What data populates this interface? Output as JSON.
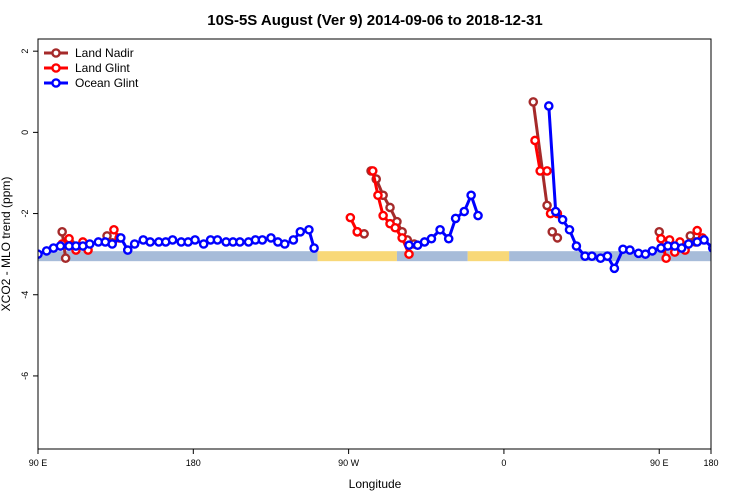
{
  "chart_data": {
    "type": "line",
    "title": "10S-5S August (Ver 9)   2014-09-06 to 2018-12-31",
    "xlabel": "Longitude",
    "ylabel": "XCO2 - MLO trend (ppm)",
    "xlim": [
      90,
      480
    ],
    "ylim": [
      -7.8,
      2.3
    ],
    "x_ticks": [
      {
        "value": 90,
        "label": "90 E"
      },
      {
        "value": 180,
        "label": "180"
      },
      {
        "value": 270,
        "label": "90 W"
      },
      {
        "value": 360,
        "label": "0"
      },
      {
        "value": 450,
        "label": "90 E"
      },
      {
        "value": 480,
        "label": "180"
      }
    ],
    "y_ticks": [
      {
        "value": 2,
        "label": "2"
      },
      {
        "value": 0,
        "label": "0"
      },
      {
        "value": -2,
        "label": "-2"
      },
      {
        "value": -4,
        "label": "-4"
      },
      {
        "value": -6,
        "label": "-6"
      }
    ],
    "grid": false,
    "legend_position": "top-left",
    "series": [
      {
        "name": "Land Nadir",
        "color": "#a52a2a",
        "segments": [
          [
            [
              104,
              -2.45
            ],
            [
              106,
              -3.1
            ]
          ],
          [
            [
              109,
              -2.75
            ],
            [
              112,
              -2.85
            ]
          ],
          [
            [
              130,
              -2.55
            ],
            [
              133,
              -2.72
            ]
          ],
          [
            [
              275,
              -2.45
            ],
            [
              279,
              -2.5
            ]
          ],
          [
            [
              283,
              -0.95
            ],
            [
              286,
              -1.15
            ],
            [
              290,
              -1.55
            ],
            [
              294,
              -1.85
            ],
            [
              298,
              -2.2
            ],
            [
              301,
              -2.45
            ],
            [
              304,
              -2.65
            ],
            [
              308,
              -2.75
            ]
          ],
          [
            [
              377,
              0.75
            ],
            [
              385,
              -1.8
            ]
          ],
          [
            [
              388,
              -2.45
            ],
            [
              391,
              -2.6
            ]
          ],
          [
            [
              450,
              -2.45
            ],
            [
              452,
              -2.85
            ]
          ],
          [
            [
              468,
              -2.55
            ],
            [
              471,
              -2.7
            ]
          ]
        ]
      },
      {
        "name": "Land Glint",
        "color": "#ff0000",
        "segments": [
          [
            [
              104,
              -2.75
            ],
            [
              108,
              -2.62
            ],
            [
              112,
              -2.9
            ],
            [
              116,
              -2.7
            ],
            [
              119,
              -2.9
            ]
          ],
          [
            [
              134,
              -2.4
            ],
            [
              137,
              -2.6
            ]
          ],
          [
            [
              271,
              -2.1
            ],
            [
              275,
              -2.45
            ]
          ],
          [
            [
              284,
              -0.95
            ],
            [
              287,
              -1.55
            ],
            [
              290,
              -2.05
            ],
            [
              294,
              -2.25
            ],
            [
              297,
              -2.35
            ],
            [
              301,
              -2.6
            ],
            [
              305,
              -3.0
            ]
          ],
          [
            [
              378,
              -0.2
            ],
            [
              381,
              -0.95
            ],
            [
              385,
              -0.95
            ]
          ],
          [
            [
              387,
              -2.0
            ],
            [
              391,
              -2.0
            ]
          ],
          [
            [
              451,
              -2.62
            ],
            [
              454,
              -3.1
            ]
          ],
          [
            [
              456,
              -2.65
            ],
            [
              459,
              -2.95
            ],
            [
              462,
              -2.7
            ],
            [
              465,
              -2.9
            ]
          ],
          [
            [
              472,
              -2.42
            ],
            [
              475,
              -2.6
            ]
          ]
        ]
      },
      {
        "name": "Ocean Glint",
        "color": "#0000ff",
        "segments": [
          [
            [
              90,
              -3.0
            ],
            [
              95,
              -2.92
            ],
            [
              99,
              -2.85
            ],
            [
              103,
              -2.8
            ],
            [
              108,
              -2.8
            ],
            [
              112,
              -2.8
            ],
            [
              116,
              -2.8
            ],
            [
              120,
              -2.75
            ],
            [
              125,
              -2.7
            ],
            [
              129,
              -2.7
            ],
            [
              133,
              -2.75
            ],
            [
              138,
              -2.6
            ],
            [
              142,
              -2.9
            ],
            [
              146,
              -2.75
            ],
            [
              151,
              -2.65
            ],
            [
              155,
              -2.7
            ],
            [
              160,
              -2.7
            ],
            [
              164,
              -2.7
            ],
            [
              168,
              -2.65
            ],
            [
              173,
              -2.7
            ],
            [
              177,
              -2.7
            ],
            [
              181,
              -2.65
            ],
            [
              186,
              -2.75
            ],
            [
              190,
              -2.65
            ],
            [
              194,
              -2.65
            ],
            [
              199,
              -2.7
            ],
            [
              203,
              -2.7
            ],
            [
              207,
              -2.7
            ],
            [
              212,
              -2.7
            ],
            [
              216,
              -2.65
            ],
            [
              220,
              -2.65
            ],
            [
              225,
              -2.6
            ],
            [
              229,
              -2.7
            ],
            [
              233,
              -2.75
            ],
            [
              238,
              -2.65
            ],
            [
              242,
              -2.45
            ],
            [
              247,
              -2.4
            ],
            [
              250,
              -2.85
            ]
          ],
          [
            [
              305,
              -2.78
            ],
            [
              310,
              -2.78
            ],
            [
              314,
              -2.7
            ],
            [
              318,
              -2.62
            ],
            [
              323,
              -2.4
            ],
            [
              328,
              -2.62
            ],
            [
              332,
              -2.12
            ],
            [
              337,
              -1.95
            ],
            [
              341,
              -1.55
            ],
            [
              345,
              -2.05
            ]
          ],
          [
            [
              386,
              0.65
            ],
            [
              390,
              -1.95
            ],
            [
              394,
              -2.15
            ],
            [
              398,
              -2.4
            ],
            [
              402,
              -2.8
            ],
            [
              407,
              -3.05
            ],
            [
              411,
              -3.05
            ],
            [
              416,
              -3.1
            ],
            [
              420,
              -3.05
            ],
            [
              424,
              -3.35
            ],
            [
              429,
              -2.88
            ],
            [
              433,
              -2.9
            ],
            [
              438,
              -2.98
            ],
            [
              442,
              -3.0
            ],
            [
              446,
              -2.92
            ],
            [
              451,
              -2.85
            ],
            [
              455,
              -2.8
            ],
            [
              459,
              -2.8
            ],
            [
              463,
              -2.85
            ],
            [
              467,
              -2.75
            ],
            [
              472,
              -2.7
            ],
            [
              476,
              -2.65
            ],
            [
              481,
              -2.85
            ],
            [
              485,
              -2.68
            ],
            [
              489,
              -2.6
            ],
            [
              494,
              -2.68
            ],
            [
              498,
              -2.7
            ]
          ]
        ]
      }
    ],
    "surface_bar": {
      "y": -3.05,
      "segments": [
        {
          "from": 90,
          "to": 252,
          "color": "#a7bcd9"
        },
        {
          "from": 252,
          "to": 298,
          "color": "#f8d878"
        },
        {
          "from": 298,
          "to": 339,
          "color": "#a7bcd9"
        },
        {
          "from": 339,
          "to": 363,
          "color": "#f8d878"
        },
        {
          "from": 363,
          "to": 480,
          "color": "#a7bcd9"
        }
      ]
    }
  }
}
